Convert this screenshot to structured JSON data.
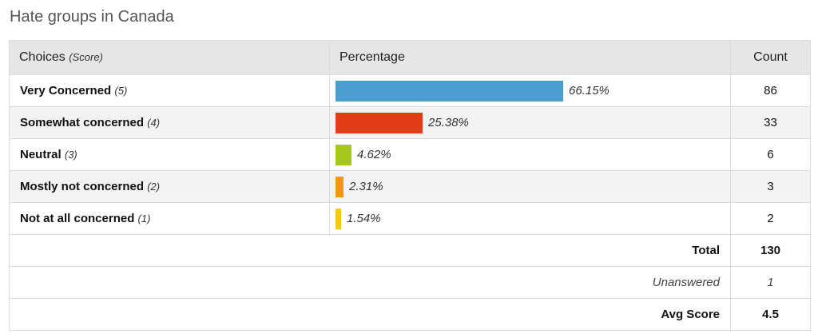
{
  "title": "Hate groups in Canada",
  "headers": {
    "choices": "Choices",
    "score": "(Score)",
    "percentage": "Percentage",
    "count": "Count"
  },
  "chart_data": {
    "type": "bar",
    "orientation": "horizontal",
    "categories": [
      "Very Concerned",
      "Somewhat concerned",
      "Neutral",
      "Mostly not concerned",
      "Not at all concerned"
    ],
    "scores": [
      "(5)",
      "(4)",
      "(3)",
      "(2)",
      "(1)"
    ],
    "values": [
      66.15,
      25.38,
      4.62,
      2.31,
      1.54
    ],
    "value_labels": [
      "66.15%",
      "25.38%",
      "4.62%",
      "2.31%",
      "1.54%"
    ],
    "counts": [
      "86",
      "33",
      "6",
      "3",
      "2"
    ],
    "colors": [
      "#4a9fd0",
      "#e13d17",
      "#a6c81a",
      "#f5960f",
      "#f5c81a"
    ],
    "xlim": [
      0,
      100
    ]
  },
  "summary": {
    "total_label": "Total",
    "total_value": "130",
    "unanswered_label": "Unanswered",
    "unanswered_value": "1",
    "avg_label": "Avg Score",
    "avg_value": "4.5"
  }
}
